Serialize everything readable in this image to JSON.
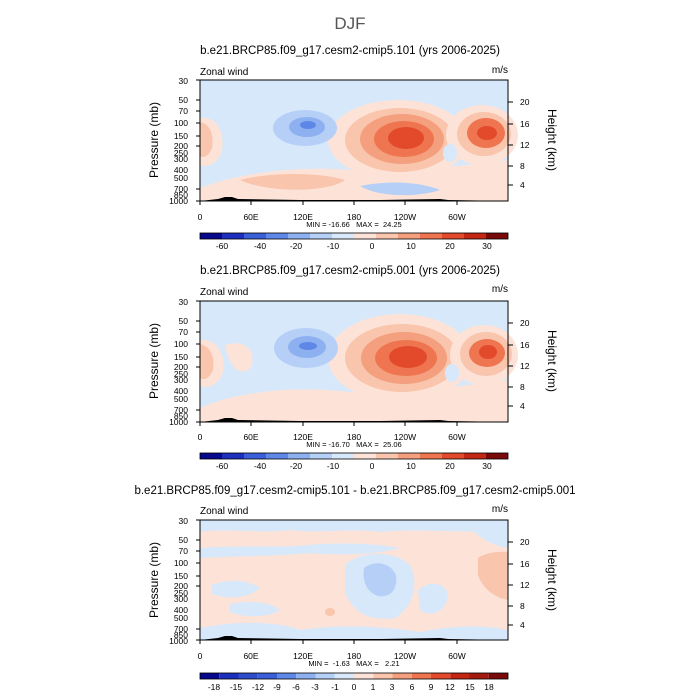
{
  "figure_title": "DJF",
  "chart_data": [
    {
      "type": "heatmap",
      "title": "b.e21.BRCP85.f09_g17.cesm2-cmip5.101 (yrs 2006-2025)",
      "variable": "Zonal wind",
      "units": "m/s",
      "ylabel": "Pressure (mb)",
      "ylabel_right": "Height (km)",
      "x_ticks": [
        "0",
        "60E",
        "120E",
        "180",
        "120W",
        "60W"
      ],
      "y_ticks": [
        "30",
        "50",
        "70",
        "100",
        "150",
        "200",
        "250",
        "300",
        "400",
        "500",
        "700",
        "850",
        "1000"
      ],
      "height_ticks": [
        "20",
        "16",
        "12",
        "8",
        "4"
      ],
      "stats": "MIN = -16.66   MAX =  24.25",
      "min": -16.66,
      "max": 24.25,
      "colorbar_labels": [
        "-60",
        "-40",
        "-20",
        "-10",
        "0",
        "10",
        "20",
        "30"
      ],
      "features": [
        {
          "lon": 140,
          "p": 100,
          "value": -10
        },
        {
          "lon": 205,
          "p": 175,
          "value": 24.25
        },
        {
          "lon": 305,
          "p": 145,
          "value": 20
        }
      ]
    },
    {
      "type": "heatmap",
      "title": "b.e21.BRCP85.f09_g17.cesm2-cmip5.001 (yrs 2006-2025)",
      "variable": "Zonal wind",
      "units": "m/s",
      "ylabel": "Pressure (mb)",
      "ylabel_right": "Height (km)",
      "x_ticks": [
        "0",
        "60E",
        "120E",
        "180",
        "120W",
        "60W"
      ],
      "y_ticks": [
        "30",
        "50",
        "70",
        "100",
        "150",
        "200",
        "250",
        "300",
        "400",
        "500",
        "700",
        "850",
        "1000"
      ],
      "height_ticks": [
        "20",
        "16",
        "12",
        "8",
        "4"
      ],
      "stats": "MIN = -16.70   MAX =  25.06",
      "min": -16.7,
      "max": 25.06,
      "colorbar_labels": [
        "-60",
        "-40",
        "-20",
        "-10",
        "0",
        "10",
        "20",
        "30"
      ],
      "features": [
        {
          "lon": 140,
          "p": 120,
          "value": -10
        },
        {
          "lon": 210,
          "p": 165,
          "value": 25.06
        },
        {
          "lon": 300,
          "p": 150,
          "value": 20
        }
      ]
    },
    {
      "type": "heatmap",
      "title": "b.e21.BRCP85.f09_g17.cesm2-cmip5.101 - b.e21.BRCP85.f09_g17.cesm2-cmip5.001",
      "variable": "Zonal wind",
      "units": "m/s",
      "ylabel": "Pressure (mb)",
      "ylabel_right": "Height (km)",
      "x_ticks": [
        "0",
        "60E",
        "120E",
        "180",
        "120W",
        "60W"
      ],
      "y_ticks": [
        "30",
        "50",
        "70",
        "100",
        "150",
        "200",
        "250",
        "300",
        "400",
        "500",
        "700",
        "850",
        "1000"
      ],
      "height_ticks": [
        "20",
        "16",
        "12",
        "8",
        "4"
      ],
      "stats": "MIN =  -1.63   MAX =   2.21",
      "min": -1.63,
      "max": 2.21,
      "colorbar_labels": [
        "-18",
        "-15",
        "-12",
        "-9",
        "-6",
        "-3",
        "-1",
        "0",
        "1",
        "3",
        "6",
        "9",
        "12",
        "15",
        "18"
      ],
      "features": [
        {
          "lon": 190,
          "p": 170,
          "value": -1.63
        },
        {
          "lon": 330,
          "p": 120,
          "value": 2.21
        }
      ]
    }
  ],
  "colors": {
    "colorbar": [
      "#08088c",
      "#1d2fbf",
      "#3a5fd8",
      "#5f87e8",
      "#8db0f0",
      "#b5cff7",
      "#d7e8fb",
      "#fde3d7",
      "#f9c5ad",
      "#f4a07f",
      "#ee7550",
      "#e34a2c",
      "#c42614",
      "#7a0a0a"
    ],
    "diff_colorbar": [
      "#08088c",
      "#1d2fbf",
      "#2e4ccc",
      "#3a5fd8",
      "#5f87e8",
      "#8db0f0",
      "#b5cff7",
      "#d7e8fb",
      "#fde3d7",
      "#f9c5ad",
      "#f4a07f",
      "#ee7550",
      "#e34a2c",
      "#c42614",
      "#a51a0e",
      "#7a0a0a"
    ],
    "neg_light": "#d7e8fb",
    "neg_mid": "#b5cff7",
    "neg_strong": "#8db0f0",
    "neg_core": "#5f87e8",
    "pos_light": "#fde3d7",
    "pos_1": "#f9c5ad",
    "pos_2": "#f4a07f",
    "pos_3": "#ee7550",
    "pos_4": "#e34a2c",
    "pos_5": "#c42614",
    "topography": "#000000"
  }
}
